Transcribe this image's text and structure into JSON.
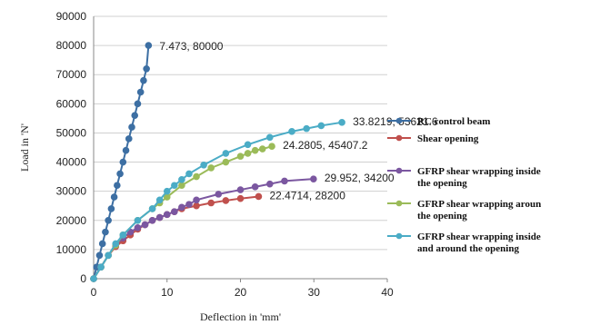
{
  "chart_data": {
    "type": "line",
    "title": "",
    "xlabel": "Deflection in 'mm'",
    "ylabel": "Load in 'N'",
    "xlim": [
      0,
      40
    ],
    "ylim": [
      0,
      90000
    ],
    "x_ticks": [
      "0",
      "10",
      "20",
      "30",
      "40"
    ],
    "y_ticks": [
      "0",
      "10000",
      "20000",
      "30000",
      "40000",
      "50000",
      "60000",
      "70000",
      "80000",
      "90000"
    ],
    "legend_position": "right",
    "series": [
      {
        "name": "RC control beam",
        "color": "#3d6fa3",
        "x": [
          0,
          0.4,
          0.8,
          1.2,
          1.6,
          2.0,
          2.4,
          2.8,
          3.2,
          3.6,
          4.0,
          4.4,
          4.8,
          5.2,
          5.6,
          6.0,
          6.4,
          6.8,
          7.2,
          7.473
        ],
        "y": [
          0,
          4000,
          8000,
          12000,
          16000,
          20000,
          24000,
          28000,
          32000,
          36000,
          40000,
          44000,
          48000,
          52000,
          56000,
          60000,
          64000,
          68000,
          72000,
          80000
        ],
        "end_label": "7.473, 80000"
      },
      {
        "name": "Shear opening",
        "color": "#c0504d",
        "x": [
          0,
          1,
          2,
          3,
          4,
          5,
          6,
          7,
          8,
          9,
          10,
          11,
          12,
          14,
          16,
          18,
          20,
          22.4714
        ],
        "y": [
          0,
          4000,
          8000,
          11000,
          13000,
          15000,
          17000,
          18500,
          20000,
          21000,
          22000,
          23000,
          24000,
          25000,
          26000,
          26800,
          27500,
          28200
        ],
        "end_label": "22.4714, 28200"
      },
      {
        "name": "GFRP shear wrapping inside the opening",
        "color": "#7b57a0",
        "x": [
          0,
          1,
          2,
          3,
          4,
          5,
          6,
          7,
          8,
          9,
          10,
          11,
          12,
          13,
          14,
          17,
          20,
          22,
          24,
          26,
          29.952
        ],
        "y": [
          0,
          4000,
          8000,
          11500,
          14000,
          16000,
          17500,
          18500,
          20000,
          21000,
          22000,
          23000,
          24500,
          25500,
          27000,
          29000,
          30500,
          31500,
          32500,
          33500,
          34200
        ],
        "end_label": "29.952, 34200"
      },
      {
        "name": "GFRP shear wrapping aroun the opening",
        "color": "#9bbb59",
        "x": [
          0,
          1,
          2,
          3,
          4,
          6,
          8,
          9,
          10,
          12,
          14,
          16,
          18,
          20,
          21,
          22,
          23,
          24.2805
        ],
        "y": [
          0,
          4000,
          8000,
          11500,
          15000,
          20000,
          24000,
          26000,
          28000,
          32000,
          35000,
          38000,
          40000,
          42000,
          43000,
          44000,
          44500,
          45407.2
        ],
        "end_label": "24.2805, 45407.2"
      },
      {
        "name": "GFRP shear wrapping inside and around the opening",
        "color": "#4bacc6",
        "x": [
          0,
          1,
          2,
          3,
          4,
          6,
          8,
          9,
          10,
          11,
          12,
          13,
          15,
          18,
          21,
          24,
          27,
          29,
          31,
          33.8219
        ],
        "y": [
          0,
          4000,
          8000,
          12000,
          15000,
          20000,
          24000,
          27000,
          30000,
          32000,
          34000,
          36000,
          39000,
          43000,
          46000,
          48500,
          50500,
          51500,
          52500,
          53621.6
        ],
        "end_label": "33.8219, 53621.6"
      }
    ]
  }
}
